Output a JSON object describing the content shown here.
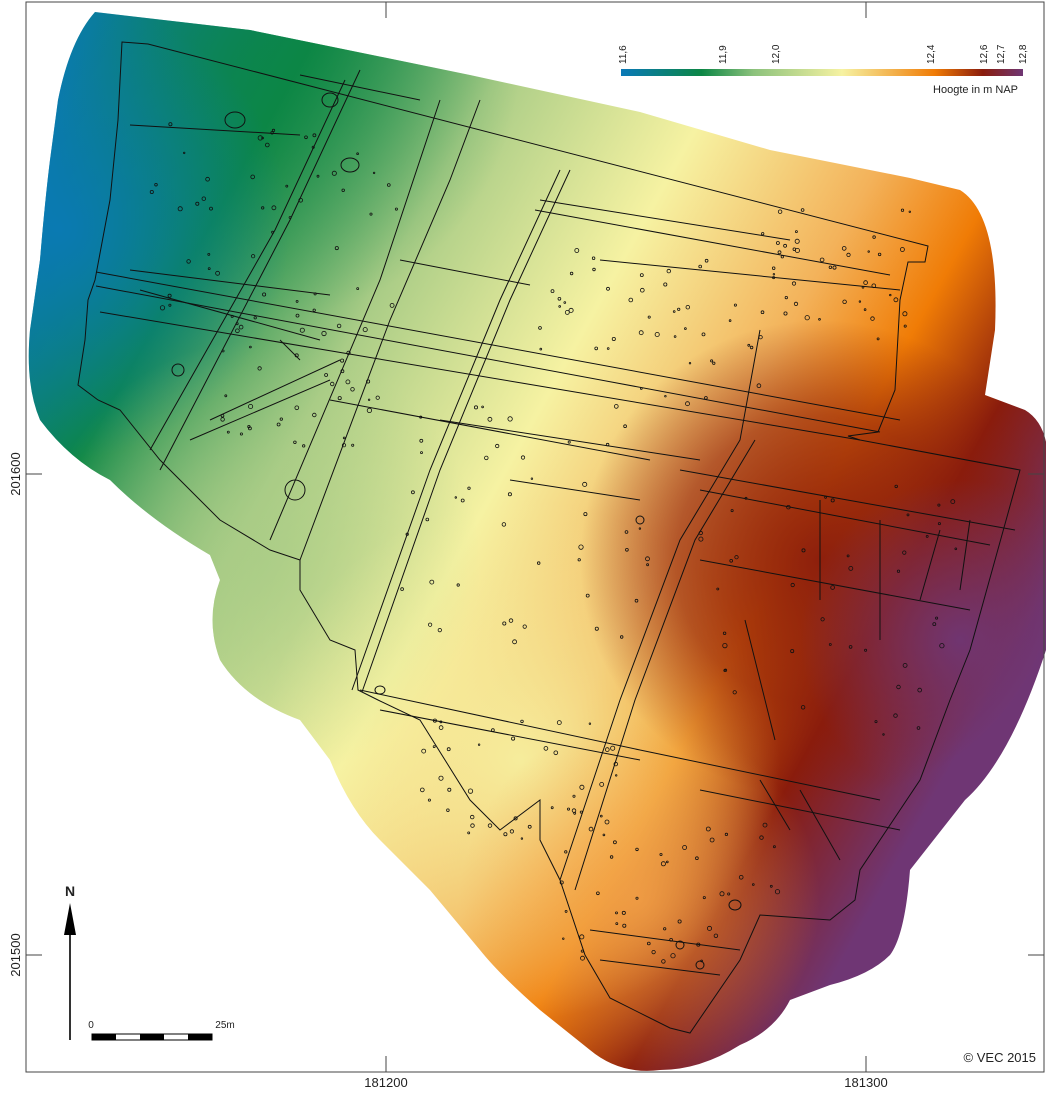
{
  "legend": {
    "title": "Hoogte in m NAP",
    "ticks": [
      "11,6",
      "11,9",
      "12,0",
      "12,4",
      "12,6",
      "12,7",
      "12,8"
    ],
    "gradient_colors": [
      "#0a79b8",
      "#0c8645",
      "#a9cc86",
      "#f6f2a2",
      "#f09c3a",
      "#f07c06",
      "#8a1c0c",
      "#6f3674"
    ]
  },
  "grid": {
    "x_labels": [
      "181200",
      "181300"
    ],
    "y_labels": [
      "201600",
      "201500"
    ]
  },
  "north_arrow": {
    "label": "N"
  },
  "scale_bar": {
    "start_label": "0",
    "end_label": "25m"
  },
  "copyright": "© VEC 2015",
  "colors": {
    "frame": "#333333",
    "outline": "#111111"
  }
}
